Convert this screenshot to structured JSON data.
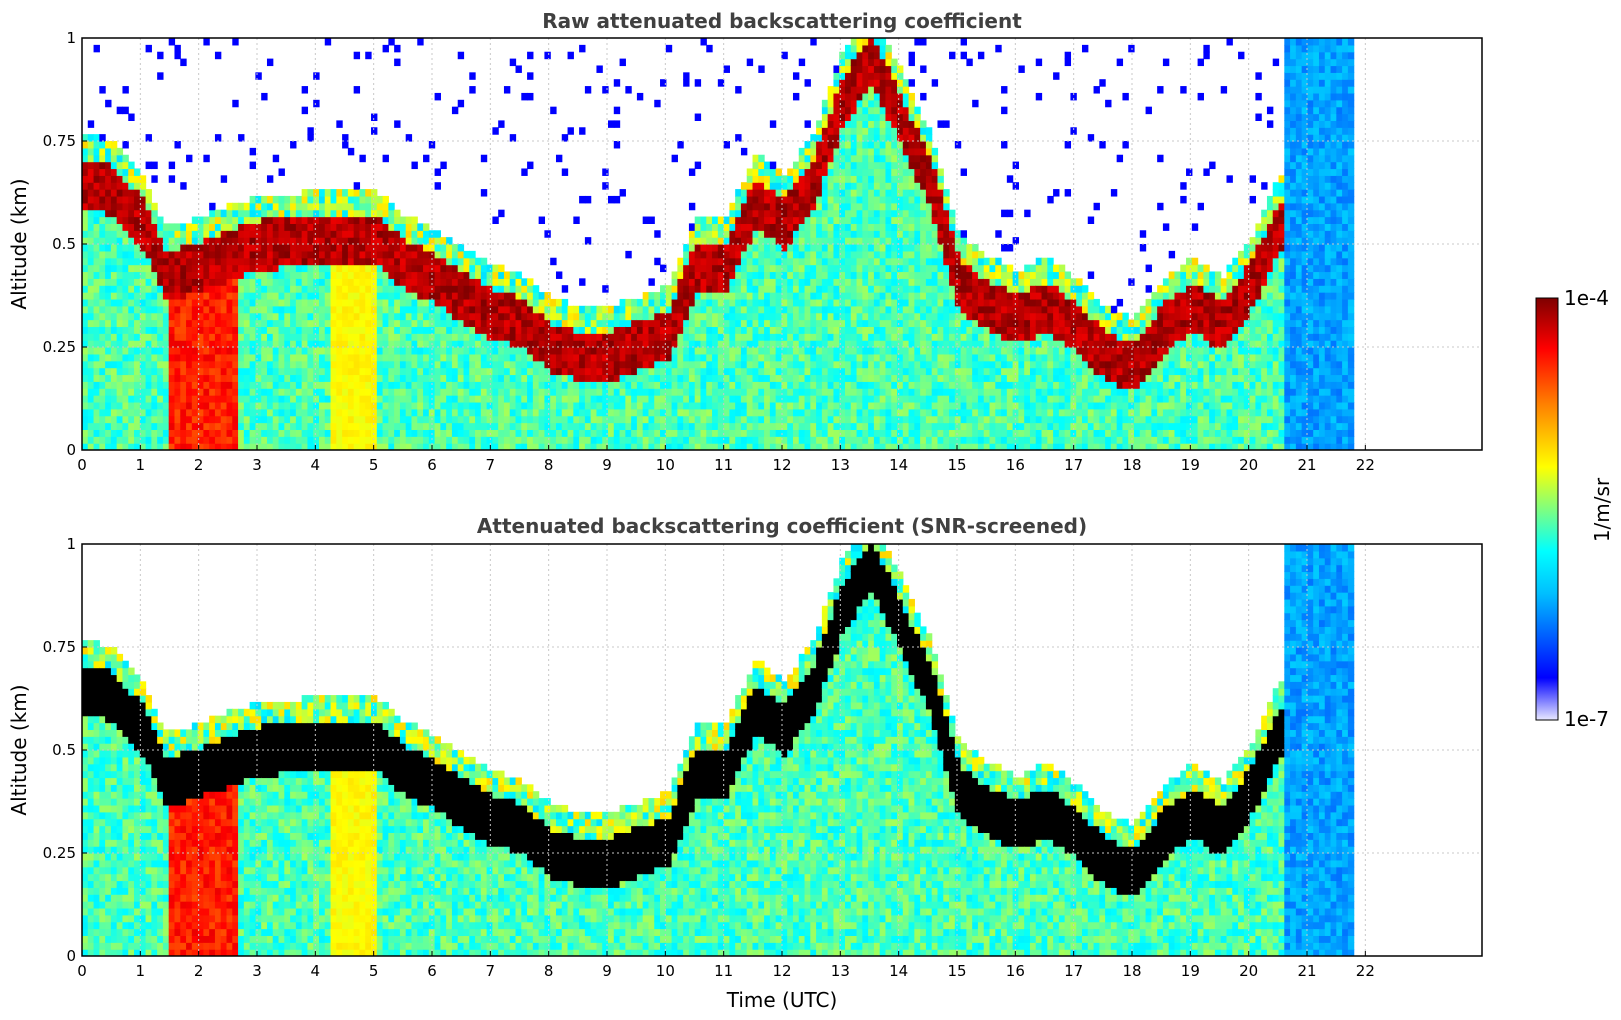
{
  "chart_data": [
    {
      "type": "heatmap",
      "title": "Raw attenuated backscattering coefficient",
      "xlabel": "",
      "ylabel": "Altitude (km)",
      "xlim": [
        0,
        24
      ],
      "ylim": [
        0,
        1
      ],
      "x_ticks": [
        0,
        1,
        2,
        3,
        4,
        5,
        6,
        7,
        8,
        9,
        10,
        11,
        12,
        13,
        14,
        15,
        16,
        17,
        18,
        19,
        20,
        21,
        22
      ],
      "y_ticks": [
        0,
        0.25,
        0.5,
        0.75,
        1
      ],
      "y_tick_labels": [
        "0",
        "0.25",
        "0.5",
        "0.75",
        "1"
      ],
      "grid": true,
      "data_end_hour": 21.8,
      "layer_top_profile": {
        "hours": [
          0,
          0.5,
          1.0,
          1.4,
          2.0,
          3.0,
          4.0,
          5.0,
          5.5,
          6.0,
          6.5,
          7.0,
          7.5,
          8.0,
          8.5,
          9.0,
          10.0,
          10.5,
          11.0,
          11.5,
          12.0,
          12.5,
          13.0,
          13.5,
          14.0,
          14.5,
          15.0,
          15.5,
          16.0,
          16.5,
          17.0,
          17.5,
          18.0,
          18.5,
          19.0,
          19.5,
          20.0,
          20.5
        ],
        "altitude_km": [
          0.7,
          0.68,
          0.6,
          0.47,
          0.5,
          0.55,
          0.56,
          0.56,
          0.5,
          0.47,
          0.42,
          0.38,
          0.36,
          0.3,
          0.28,
          0.28,
          0.33,
          0.5,
          0.5,
          0.65,
          0.6,
          0.7,
          0.9,
          1.0,
          0.85,
          0.7,
          0.45,
          0.4,
          0.37,
          0.4,
          0.35,
          0.28,
          0.25,
          0.35,
          0.4,
          0.35,
          0.45,
          0.6
        ]
      }
    },
    {
      "type": "heatmap",
      "title": "Attenuated backscattering coefficient (SNR-screened)",
      "xlabel": "Time (UTC)",
      "ylabel": "Altitude (km)",
      "xlim": [
        0,
        24
      ],
      "ylim": [
        0,
        1
      ],
      "x_ticks": [
        0,
        1,
        2,
        3,
        4,
        5,
        6,
        7,
        8,
        9,
        10,
        11,
        12,
        13,
        14,
        15,
        16,
        17,
        18,
        19,
        20,
        21,
        22
      ],
      "y_ticks": [
        0,
        0.25,
        0.5,
        0.75,
        1
      ],
      "y_tick_labels": [
        "0",
        "0.25",
        "0.5",
        "0.75",
        "1"
      ],
      "grid": true,
      "data_end_hour": 21.8,
      "screened_cells_color": "#000000"
    }
  ],
  "colorbar": {
    "label": "1/m/sr",
    "max_label": "1e-4",
    "min_label": "1e-7",
    "scale": "log",
    "range": [
      1e-07,
      0.0001
    ],
    "colormap": [
      "#e8e8ff",
      "#0000ff",
      "#00bfff",
      "#00ffff",
      "#7fff7f",
      "#ffff00",
      "#ff7f00",
      "#ff0000",
      "#7f0000"
    ]
  }
}
